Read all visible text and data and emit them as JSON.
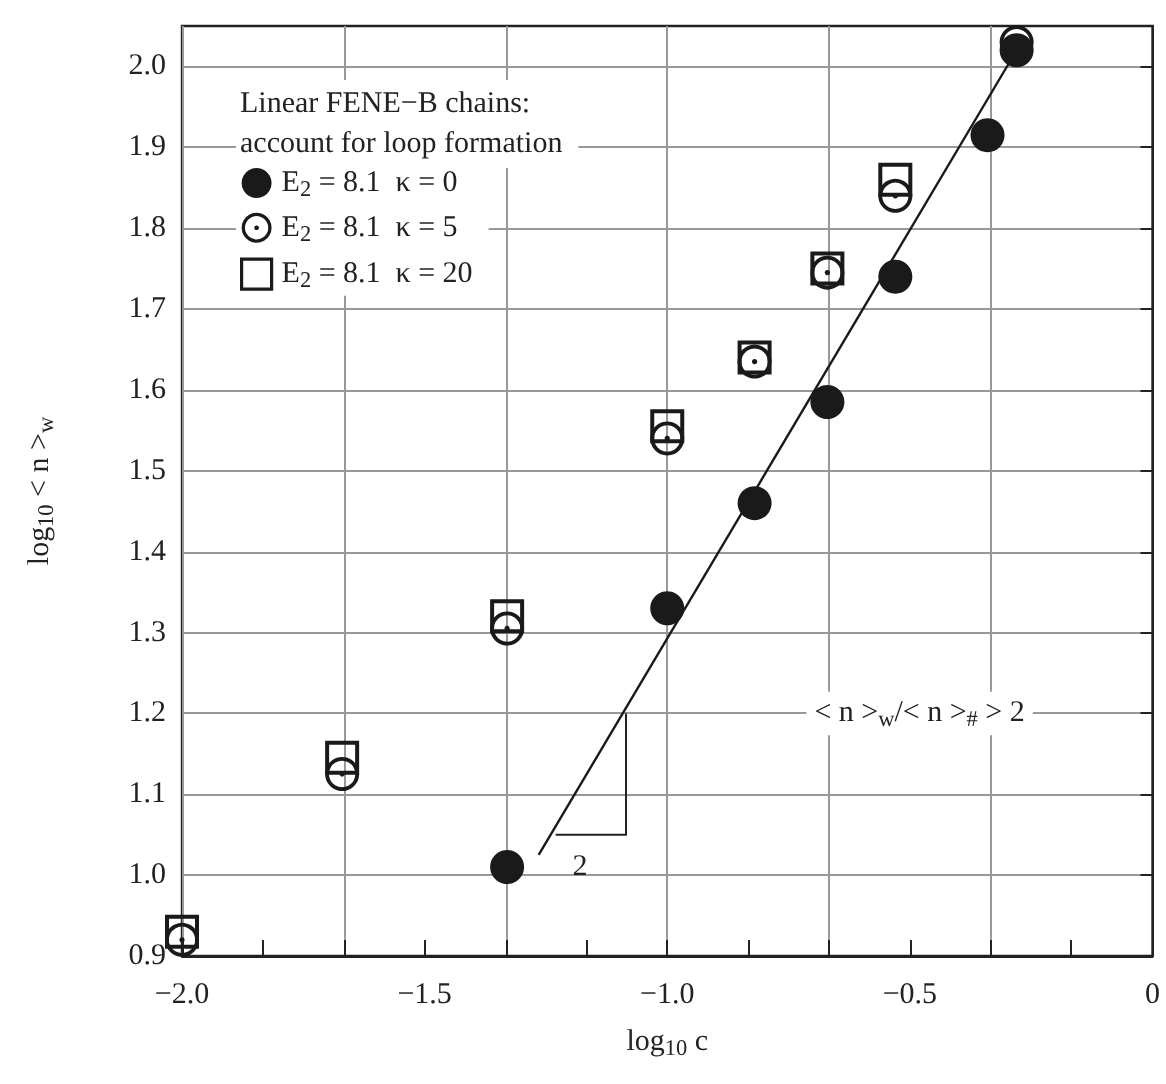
{
  "chart_data": {
    "type": "scatter",
    "xlabel": "log$_{10}$ c",
    "ylabel": "log$_{10}$ < n >$_{w}$",
    "legend_title": "Linear FENE−B chains:\naccount for loop formation",
    "annotations": [
      "< n >$_{w}$/< n >$_{#}$ > 2",
      {
        "text": "2",
        "x": -1.085,
        "y": 1.2
      }
    ],
    "xlim": [
      -2,
      0
    ],
    "ylim": [
      0.9,
      2.05
    ],
    "xticks": [
      {
        "value": -2,
        "label": "−2.0"
      },
      {
        "value": -1.833,
        "label": null
      },
      {
        "value": -1.667,
        "label": null
      },
      {
        "value": -1.5,
        "label": "−1.5"
      },
      {
        "value": -1.333,
        "label": null
      },
      {
        "value": -1.167,
        "label": null
      },
      {
        "value": -1,
        "label": "−1.0"
      },
      {
        "value": -0.833,
        "label": null
      },
      {
        "value": -0.667,
        "label": null
      },
      {
        "value": -0.5,
        "label": "−0.5"
      },
      {
        "value": -0.333,
        "label": null
      },
      {
        "value": -0.167,
        "label": null
      },
      {
        "value": 0,
        "label": "0"
      }
    ],
    "yticks": [
      0.9,
      {
        "value": 1,
        "label": "1.0"
      },
      1.1,
      1.2,
      1.3,
      1.4,
      1.5,
      1.6,
      1.7,
      1.8,
      1.9,
      {
        "value": 2,
        "label": "2.0"
      }
    ],
    "grid": true,
    "legend": "top left",
    "series": [
      {
        "name": "E$_{2}$ = 8.1  κ = 0",
        "color": "#1a1a1a",
        "marker": "circle",
        "x": [
          -1.33,
          -1.0,
          -0.82,
          -0.67,
          -0.53,
          -0.34,
          -0.28
        ],
        "values": [
          1.01,
          1.33,
          1.46,
          1.585,
          1.74,
          1.915,
          2.02
        ]
      },
      {
        "name": "E$_{2}$ = 8.1  κ = 5",
        "color": "#1a1a1a",
        "marker": "circle-dot",
        "x": [
          -2.0,
          -1.67,
          -1.33,
          -1.0,
          -0.82,
          -0.67,
          -0.53,
          -0.28
        ],
        "values": [
          0.92,
          1.125,
          1.305,
          1.54,
          1.635,
          1.745,
          1.84,
          2.03
        ]
      },
      {
        "name": "E$_{2}$ = 8.1  κ = 20",
        "color": "#1a1a1a",
        "marker": "square",
        "x": [
          -2.0,
          -1.67,
          -1.33,
          -1.0,
          -0.82,
          -0.67,
          -0.53
        ],
        "values": [
          0.93,
          1.145,
          1.32,
          1.555,
          1.64,
          1.75,
          1.86
        ]
      },
      {
        "type": "line",
        "color": "#1a1a1a",
        "marker": "none",
        "x": [
          -1.265,
          -0.28
        ],
        "values": [
          1.025,
          2.02
        ]
      }
    ]
  }
}
